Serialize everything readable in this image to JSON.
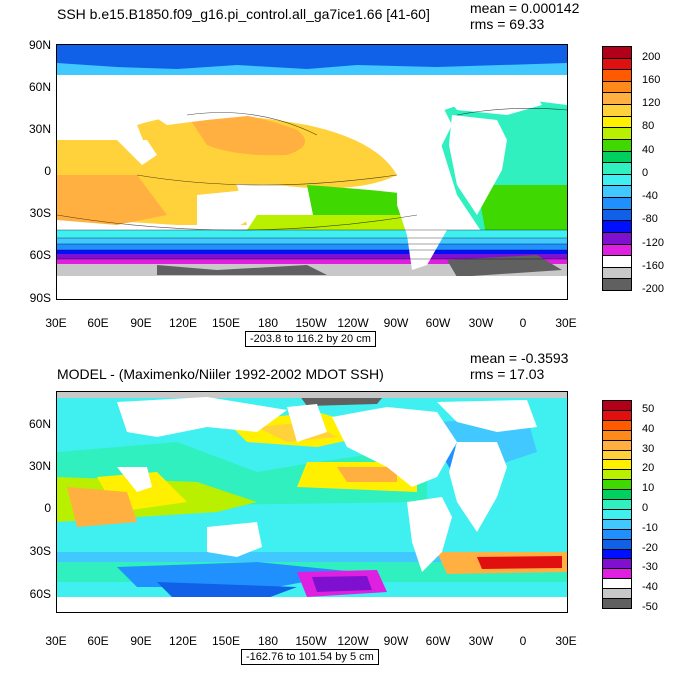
{
  "panels": [
    {
      "title": "SSH b.e15.B1850.f09_g16.pi_control.all_ga7ice1.66 [41-60]",
      "mean": "mean = 0.000142",
      "rms": "rms = 69.33",
      "range": "-203.8 to 116.2 by 20 cm",
      "lat_labels": [
        "90N",
        "60N",
        "30N",
        "0",
        "30S",
        "60S",
        "90S"
      ],
      "lon_labels": [
        "30E",
        "60E",
        "90E",
        "120E",
        "150E",
        "180",
        "150W",
        "120W",
        "90W",
        "60W",
        "30W",
        "0",
        "30E"
      ],
      "colorbar": {
        "labels": [
          "200",
          "160",
          "120",
          "80",
          "40",
          "0",
          "-40",
          "-80",
          "-120",
          "-160",
          "-200"
        ],
        "colors": [
          "#b0001a",
          "#e01010",
          "#ff5a00",
          "#ff8a1c",
          "#ffb040",
          "#ffd23c",
          "#fff000",
          "#b8f000",
          "#3fd800",
          "#00d060",
          "#30f0c0",
          "#40f0f0",
          "#40c8ff",
          "#2090ff",
          "#1060e8",
          "#0010ff",
          "#8010d0",
          "#e020e0",
          "#ffffff",
          "#c8c8c8",
          "#606060"
        ]
      }
    },
    {
      "title": "MODEL - (Maximenko/Niiler 1992-2002 MDOT SSH)",
      "mean": "mean = -0.3593",
      "rms": "rms = 17.03",
      "range": "-162.76 to 101.54 by 5 cm",
      "lat_labels": [
        "60N",
        "30N",
        "0",
        "30S",
        "60S"
      ],
      "lon_labels": [
        "30E",
        "60E",
        "90E",
        "120E",
        "150E",
        "180",
        "150W",
        "120W",
        "90W",
        "60W",
        "30W",
        "0",
        "30E"
      ],
      "colorbar": {
        "labels": [
          "50",
          "40",
          "30",
          "20",
          "10",
          "0",
          "-10",
          "-20",
          "-30",
          "-40",
          "-50"
        ],
        "colors": [
          "#b0001a",
          "#e01010",
          "#ff5a00",
          "#ff8a1c",
          "#ffb040",
          "#ffd23c",
          "#fff000",
          "#b8f000",
          "#3fd800",
          "#00d060",
          "#30f0c0",
          "#40f0f0",
          "#40c8ff",
          "#2090ff",
          "#1060e8",
          "#0010ff",
          "#8010d0",
          "#e020e0",
          "#ffffff",
          "#c8c8c8",
          "#606060"
        ]
      }
    }
  ]
}
